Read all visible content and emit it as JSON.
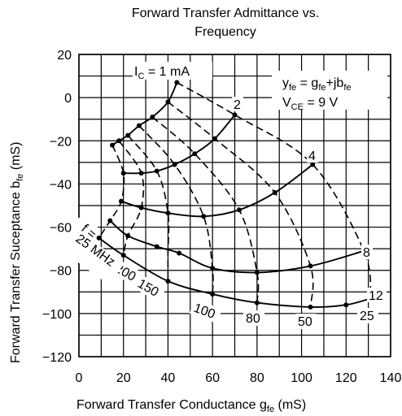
{
  "chart_data": {
    "type": "line",
    "title_line1": "Forward Transfer Admittance vs.",
    "title_line2": "Frequency",
    "xlabel": {
      "main": "Forward Transfer Conductance  g",
      "sub": "fe",
      "unit": "  (mS)"
    },
    "ylabel": {
      "main": "Forward Transfer Suceptance  b",
      "sub": "fe",
      "unit": "  (mS)"
    },
    "xlim": [
      0,
      140
    ],
    "ylim": [
      -120,
      20
    ],
    "grid": true,
    "x_ticks": [
      {
        "v": 0,
        "label": "0"
      },
      {
        "v": 20,
        "label": "20"
      },
      {
        "v": 40,
        "label": "40"
      },
      {
        "v": 60,
        "label": "60"
      },
      {
        "v": 80,
        "label": "80"
      },
      {
        "v": 100,
        "label": "100"
      },
      {
        "v": 120,
        "label": "120"
      },
      {
        "v": 140,
        "label": "140"
      }
    ],
    "y_ticks": [
      {
        "v": 20,
        "label": "20"
      },
      {
        "v": 0,
        "label": "0"
      },
      {
        "v": -20,
        "label": "−20"
      },
      {
        "v": -40,
        "label": "−40"
      },
      {
        "v": -60,
        "label": "−60"
      },
      {
        "v": -80,
        "label": "−80"
      },
      {
        "v": -100,
        "label": "−100"
      },
      {
        "v": -120,
        "label": "−120"
      }
    ],
    "legend_text": {
      "eq_y": "y",
      "eq_fe1": "fe",
      "eq_mid": " = g",
      "eq_fe2": "fe",
      "eq_plus": "+jb",
      "eq_fe3": "fe",
      "vce_v": "V",
      "vce_sub": "CE",
      "vce_val": " = 9 V",
      "ic_i": "I",
      "ic_sub": "C",
      "ic_val": " = 1 mA",
      "f_eq": "f ="
    },
    "current_curves": [
      {
        "name": "1 mA",
        "label": "",
        "points": [
          [
            15,
            -22
          ],
          [
            18,
            -20
          ],
          [
            22,
            -17.5
          ],
          [
            27,
            -13
          ],
          [
            33,
            -9
          ],
          [
            40,
            -2
          ],
          [
            44,
            7
          ]
        ]
      },
      {
        "name": "2 mA",
        "label": "2",
        "points": [
          [
            20,
            -35
          ],
          [
            28,
            -35
          ],
          [
            35,
            -34
          ],
          [
            43,
            -31
          ],
          [
            52,
            -26
          ],
          [
            61,
            -19
          ],
          [
            70,
            -8
          ]
        ]
      },
      {
        "name": "4 mA",
        "label": "4",
        "points": [
          [
            19,
            -48
          ],
          [
            28,
            -51
          ],
          [
            40,
            -53.5
          ],
          [
            56,
            -55
          ],
          [
            72,
            -52
          ],
          [
            88,
            -44
          ],
          [
            105,
            -31
          ]
        ]
      },
      {
        "name": "8 mA",
        "label": "8",
        "points": [
          [
            14,
            -57
          ],
          [
            22,
            -64
          ],
          [
            35,
            -69
          ],
          [
            45,
            -72
          ],
          [
            60,
            -79
          ],
          [
            80,
            -81
          ],
          [
            104,
            -78
          ],
          [
            128,
            -71
          ]
        ]
      },
      {
        "name": "12 mA",
        "label": "12",
        "points": [
          [
            9,
            -65
          ],
          [
            20,
            -73
          ],
          [
            40,
            -85
          ],
          [
            60,
            -91
          ],
          [
            80,
            -95
          ],
          [
            104,
            -97
          ],
          [
            120,
            -96
          ],
          [
            131,
            -93
          ]
        ]
      }
    ],
    "freq_curves": [
      {
        "label": "25",
        "points": [
          [
            44,
            7
          ],
          [
            70,
            -8
          ],
          [
            105,
            -31
          ],
          [
            128,
            -71
          ],
          [
            131,
            -93
          ]
        ]
      },
      {
        "label": "50",
        "points": [
          [
            40,
            -2
          ],
          [
            61,
            -19
          ],
          [
            88,
            -44
          ],
          [
            104,
            -78
          ],
          [
            104,
            -97
          ]
        ]
      },
      {
        "label": "80",
        "points": [
          [
            33,
            -9
          ],
          [
            52,
            -26
          ],
          [
            72,
            -52
          ],
          [
            80,
            -81
          ],
          [
            80,
            -95
          ]
        ]
      },
      {
        "label": "100",
        "points": [
          [
            27,
            -13
          ],
          [
            43,
            -31
          ],
          [
            56,
            -55
          ],
          [
            60,
            -79
          ],
          [
            60,
            -91
          ]
        ]
      },
      {
        "label": "150",
        "points": [
          [
            22,
            -17.5
          ],
          [
            35,
            -34
          ],
          [
            40,
            -53.5
          ],
          [
            40,
            -72
          ],
          [
            40,
            -85
          ]
        ]
      },
      {
        "label": "200",
        "points": [
          [
            18,
            -20
          ],
          [
            28,
            -35
          ],
          [
            28,
            -51
          ],
          [
            22,
            -64
          ],
          [
            20,
            -73
          ]
        ]
      },
      {
        "label": "",
        "points": [
          [
            15,
            -22
          ],
          [
            20,
            -35
          ],
          [
            19,
            -48
          ],
          [
            14,
            -57
          ],
          [
            9,
            -65
          ]
        ]
      }
    ],
    "freq_label_25": "25",
    "freq_label_25mhz": "25 MHz"
  }
}
